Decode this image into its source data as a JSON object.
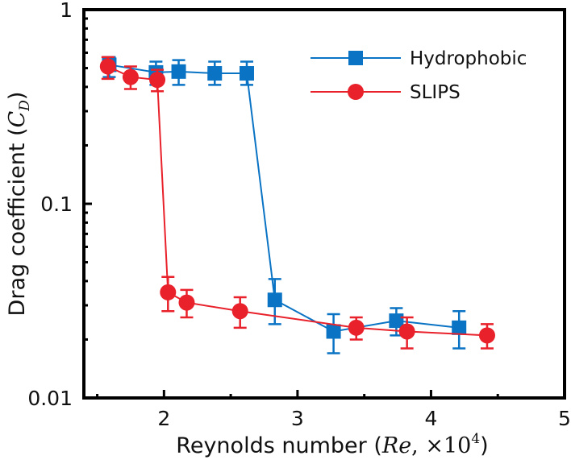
{
  "chart_data": {
    "type": "line",
    "title": "",
    "xlabel": "Reynolds number (Re, ×10^4)",
    "xlabel_parts": {
      "prefix": "Reynolds number (",
      "italic": "Re",
      "mid": ", ×10",
      "sup": "4",
      "suffix": ")"
    },
    "ylabel": "Drag coefficient (C_D)",
    "ylabel_parts": {
      "prefix": "Drag coefficient (",
      "italic": "C",
      "sub": "D",
      "suffix": ")"
    },
    "xlim": [
      1.4,
      5
    ],
    "ylim": [
      0.01,
      1
    ],
    "yscale": "log",
    "xticks": [
      2,
      3,
      4,
      5
    ],
    "xtick_labels": [
      "2",
      "3",
      "4",
      "5"
    ],
    "xminor": [
      1.5,
      2.5,
      3.5,
      4.5
    ],
    "yticks": [
      0.01,
      0.1,
      1
    ],
    "ytick_labels": [
      "0.01",
      "0.1",
      "1"
    ],
    "grid": false,
    "legend_position": "top-right",
    "series": [
      {
        "name": "Hydrophobic",
        "marker": "square",
        "color": "#0a73c4",
        "x": [
          1.59,
          1.94,
          2.11,
          2.38,
          2.62,
          2.83,
          3.27,
          3.74,
          4.21
        ],
        "y": [
          0.52,
          0.475,
          0.48,
          0.47,
          0.47,
          0.032,
          0.022,
          0.025,
          0.023
        ],
        "err_low": [
          0.45,
          0.41,
          0.41,
          0.41,
          0.41,
          0.024,
          0.017,
          0.021,
          0.018
        ],
        "err_high": [
          0.57,
          0.54,
          0.55,
          0.54,
          0.54,
          0.041,
          0.027,
          0.029,
          0.028
        ]
      },
      {
        "name": "SLIPS",
        "marker": "circle",
        "color": "#e8212b",
        "x": [
          1.58,
          1.75,
          1.95,
          2.03,
          2.17,
          2.57,
          3.44,
          3.82,
          4.42
        ],
        "y": [
          0.51,
          0.45,
          0.435,
          0.035,
          0.031,
          0.028,
          0.023,
          0.022,
          0.021
        ],
        "err_low": [
          0.44,
          0.39,
          0.38,
          0.028,
          0.026,
          0.023,
          0.02,
          0.018,
          0.018
        ],
        "err_high": [
          0.57,
          0.51,
          0.49,
          0.042,
          0.036,
          0.033,
          0.026,
          0.026,
          0.024
        ]
      }
    ]
  }
}
